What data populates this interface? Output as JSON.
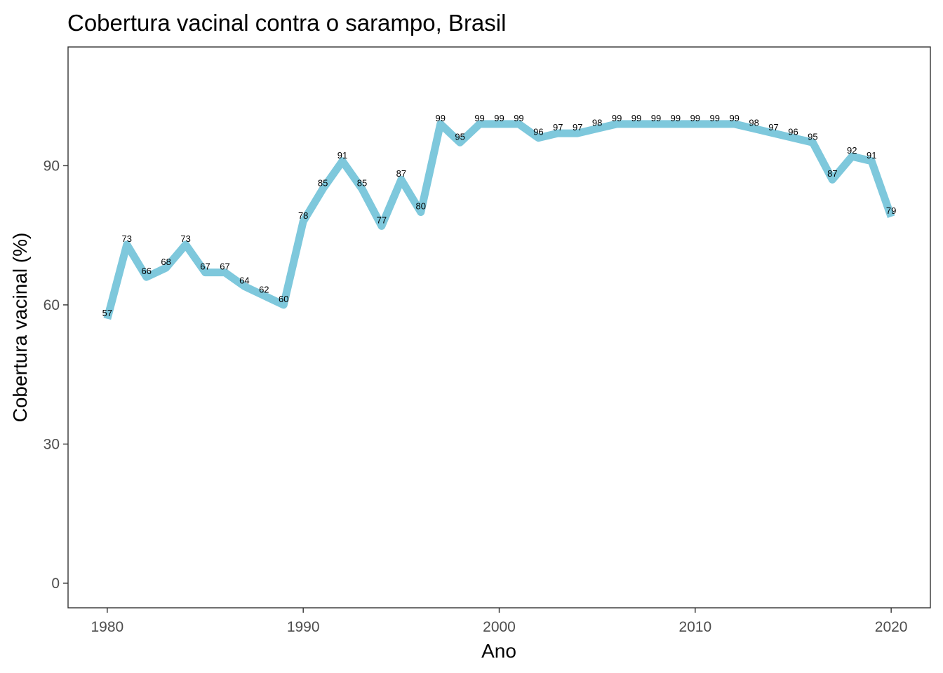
{
  "chart_data": {
    "type": "line",
    "title": "Cobertura vacinal contra o sarampo, Brasil",
    "xlabel": "Ano",
    "ylabel": "Cobertura vacinal (%)",
    "x": [
      1980,
      1981,
      1982,
      1983,
      1984,
      1985,
      1986,
      1987,
      1988,
      1989,
      1990,
      1991,
      1992,
      1993,
      1994,
      1995,
      1996,
      1997,
      1998,
      1999,
      2000,
      2001,
      2002,
      2003,
      2004,
      2005,
      2006,
      2007,
      2008,
      2009,
      2010,
      2011,
      2012,
      2013,
      2014,
      2015,
      2016,
      2017,
      2018,
      2019,
      2020
    ],
    "series": [
      {
        "values": [
          57,
          73,
          66,
          68,
          73,
          67,
          67,
          64,
          62,
          60,
          78,
          85,
          91,
          85,
          77,
          87,
          80,
          99,
          95,
          99,
          99,
          99,
          96,
          97,
          97,
          98,
          99,
          99,
          99,
          99,
          99,
          99,
          99,
          98,
          97,
          96,
          95,
          87,
          92,
          91,
          79
        ],
        "color": "#7ec8dc"
      }
    ],
    "xlim": [
      1978,
      1982.2
    ],
    "xticks": [
      1980,
      1990,
      2000,
      2010,
      2020
    ],
    "xtick_labels": [
      "1980",
      "1990",
      "2000",
      "2010",
      "2020"
    ],
    "ylim": [
      -5.3,
      115.6
    ],
    "yticks": [
      0,
      30,
      60,
      90
    ],
    "ytick_labels": [
      "0",
      "30",
      "60",
      "90"
    ],
    "grid": false,
    "legend": "none",
    "data_labels": true
  }
}
